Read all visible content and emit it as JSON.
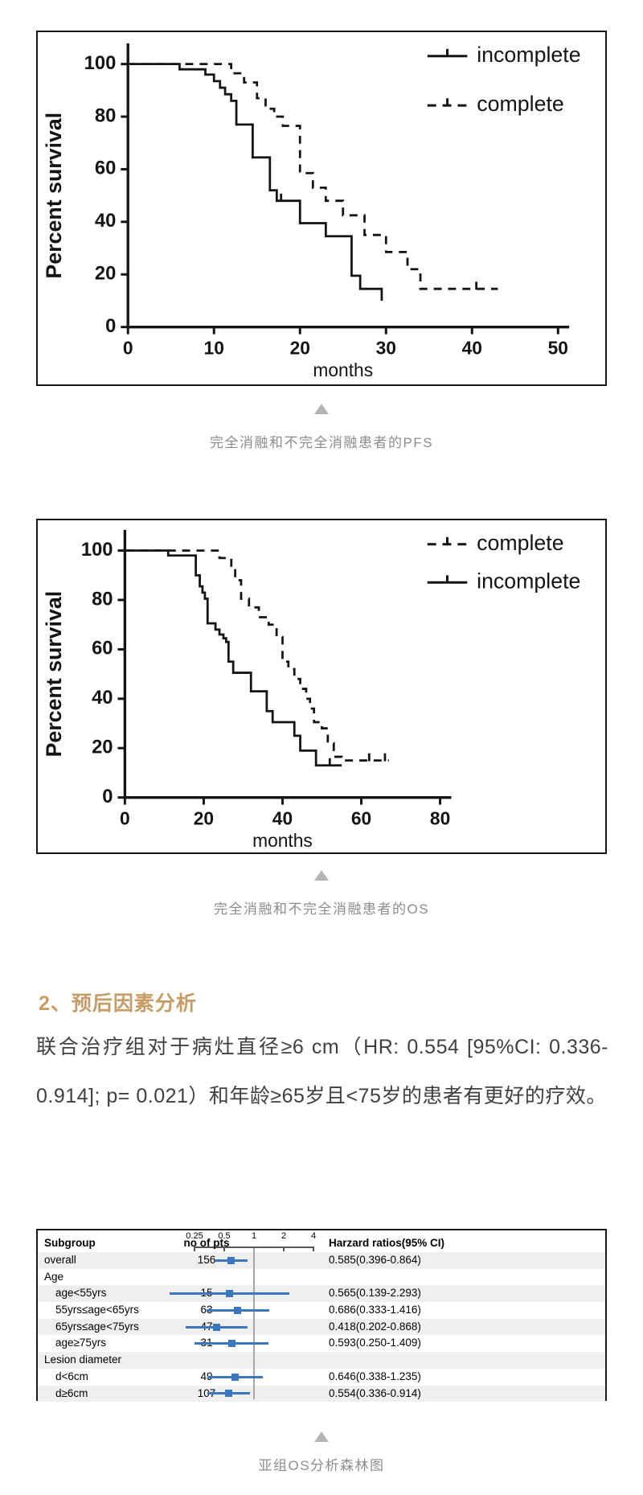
{
  "chart_data": [
    {
      "type": "line",
      "variant": "kaplan-meier-step",
      "name": "pfs-chart",
      "caption": "完全消融和不完全消融患者的PFS",
      "xlabel": "months",
      "ylabel": "Percent survival",
      "xlim": [
        0,
        50
      ],
      "ylim": [
        0,
        100
      ],
      "xticks": [
        0,
        10,
        20,
        30,
        40,
        50
      ],
      "yticks": [
        0,
        20,
        40,
        60,
        80,
        100
      ],
      "grid": false,
      "legend_position": "top-right-inside",
      "legend": [
        {
          "label": "incomplete",
          "style": "solid"
        },
        {
          "label": "complete",
          "style": "dashed"
        }
      ],
      "series": [
        {
          "name": "incomplete",
          "style": "solid",
          "points": [
            [
              0,
              100
            ],
            [
              6,
              98
            ],
            [
              9,
              96
            ],
            [
              10,
              93.5
            ],
            [
              10.7,
              91
            ],
            [
              11.3,
              88.5
            ],
            [
              12,
              86
            ],
            [
              12.6,
              77
            ],
            [
              14.5,
              64.5
            ],
            [
              16.5,
              52
            ],
            [
              17.3,
              48
            ],
            [
              20,
              39.5
            ],
            [
              23,
              34.5
            ],
            [
              26,
              19.5
            ],
            [
              27,
              14.5
            ],
            [
              29.5,
              10
            ]
          ],
          "censors": [
            [
              17.8,
              48
            ]
          ]
        },
        {
          "name": "complete",
          "style": "dashed",
          "points": [
            [
              0,
              100
            ],
            [
              12,
              96.5
            ],
            [
              13.5,
              93
            ],
            [
              15,
              87
            ],
            [
              16,
              83
            ],
            [
              17,
              80
            ],
            [
              18,
              76.5
            ],
            [
              20,
              58.5
            ],
            [
              21.5,
              53
            ],
            [
              23,
              48
            ],
            [
              25,
              42.5
            ],
            [
              27.5,
              35
            ],
            [
              30,
              28.5
            ],
            [
              32.5,
              22
            ],
            [
              34,
              14.5
            ],
            [
              43,
              14.5
            ]
          ],
          "censors": [
            [
              40.5,
              14.5
            ]
          ]
        }
      ]
    },
    {
      "type": "line",
      "variant": "kaplan-meier-step",
      "name": "os-chart",
      "caption": "完全消融和不完全消融患者的OS",
      "xlabel": "months",
      "ylabel": "Percent survival",
      "xlim": [
        0,
        80
      ],
      "ylim": [
        0,
        100
      ],
      "xticks": [
        0,
        20,
        40,
        60,
        80
      ],
      "yticks": [
        0,
        20,
        40,
        60,
        80,
        100
      ],
      "grid": false,
      "legend_position": "top-right-inside",
      "legend": [
        {
          "label": "complete",
          "style": "dashed"
        },
        {
          "label": "incomplete",
          "style": "solid"
        }
      ],
      "series": [
        {
          "name": "complete",
          "style": "dashed",
          "points": [
            [
              0,
              100
            ],
            [
              24,
              97
            ],
            [
              27,
              92
            ],
            [
              28,
              88
            ],
            [
              29.5,
              80.5
            ],
            [
              31.5,
              77
            ],
            [
              34,
              73
            ],
            [
              36.5,
              70
            ],
            [
              38.5,
              65
            ],
            [
              40,
              55
            ],
            [
              41.5,
              52
            ],
            [
              43,
              48
            ],
            [
              44.5,
              44
            ],
            [
              46,
              40
            ],
            [
              47,
              36
            ],
            [
              48,
              30.5
            ],
            [
              50,
              28
            ],
            [
              51.5,
              22
            ],
            [
              53,
              16.5
            ],
            [
              55,
              15
            ],
            [
              67,
              15
            ]
          ],
          "censors": [
            [
              62,
              15
            ],
            [
              66,
              15
            ]
          ]
        },
        {
          "name": "incomplete",
          "style": "solid",
          "points": [
            [
              0,
              100
            ],
            [
              11,
              98
            ],
            [
              18,
              90
            ],
            [
              19,
              85.5
            ],
            [
              19.7,
              83
            ],
            [
              20.3,
              80.5
            ],
            [
              21,
              70.5
            ],
            [
              23,
              68
            ],
            [
              24,
              66
            ],
            [
              25,
              64.5
            ],
            [
              25.7,
              63
            ],
            [
              26.3,
              55
            ],
            [
              27.5,
              50.5
            ],
            [
              32,
              43
            ],
            [
              36,
              35
            ],
            [
              37.5,
              30.5
            ],
            [
              43,
              25
            ],
            [
              44.5,
              19
            ],
            [
              48.5,
              13
            ],
            [
              55,
              13
            ]
          ],
          "censors": [
            [
              52,
              13
            ]
          ]
        }
      ]
    },
    {
      "type": "table",
      "variant": "forest-plot",
      "name": "forest-plot",
      "caption": "亚组OS分析森林图",
      "columns": {
        "subgroup": "Subgroup",
        "n": "no of pts",
        "hr": "Harzard ratios(95% CI)"
      },
      "scale": {
        "ticks": [
          0.25,
          0.5,
          1,
          2,
          4
        ],
        "min": 0.25,
        "max": 4,
        "ref": 1,
        "log": true
      },
      "rows": [
        {
          "label": "overall",
          "group": false,
          "indent": false,
          "n": "156",
          "hr": 0.585,
          "lo": 0.396,
          "hi": 0.864,
          "ci_text": "0.585(0.396-0.864)",
          "band": true
        },
        {
          "label": "Age",
          "group": true,
          "band": false
        },
        {
          "label": "age<55yrs",
          "group": false,
          "indent": true,
          "n": "15",
          "hr": 0.565,
          "lo": 0.139,
          "hi": 2.293,
          "ci_text": "0.565(0.139-2.293)",
          "band": true
        },
        {
          "label": "55yrs≤age<65yrs",
          "group": false,
          "indent": true,
          "n": "63",
          "hr": 0.686,
          "lo": 0.333,
          "hi": 1.416,
          "ci_text": "0.686(0.333-1.416)",
          "band": false
        },
        {
          "label": "65yrs≤age<75yrs",
          "group": false,
          "indent": true,
          "n": "47",
          "hr": 0.418,
          "lo": 0.202,
          "hi": 0.868,
          "ci_text": "0.418(0.202-0.868)",
          "band": true
        },
        {
          "label": "age≥75yrs",
          "group": false,
          "indent": true,
          "n": "31",
          "hr": 0.593,
          "lo": 0.25,
          "hi": 1.409,
          "ci_text": "0.593(0.250-1.409)",
          "band": false
        },
        {
          "label": "Lesion diameter",
          "group": true,
          "band": true
        },
        {
          "label": "d<6cm",
          "group": false,
          "indent": true,
          "n": "49",
          "hr": 0.646,
          "lo": 0.338,
          "hi": 1.235,
          "ci_text": "0.646(0.338-1.235)",
          "band": false
        },
        {
          "label": "d≥6cm",
          "group": false,
          "indent": true,
          "n": "107",
          "hr": 0.554,
          "lo": 0.336,
          "hi": 0.914,
          "ci_text": "0.554(0.336-0.914)",
          "band": true
        }
      ]
    }
  ],
  "section": {
    "heading": "2、预后因素分析",
    "paragraph": "联合治疗组对于病灶直径≥6  cm（HR: 0.554 [95%CI: 0.336-0.914]; p= 0.021）和年龄≥65岁且<75岁的患者有更好的疗效。"
  },
  "colors": {
    "line": "#141414",
    "heading": "#C79B66",
    "caption": "#8c8c8c",
    "triangle": "#b5b5b5",
    "forest_blue": "#3B77BE",
    "band_gray": "#efefef",
    "ref_line": "#a6a6a6"
  }
}
